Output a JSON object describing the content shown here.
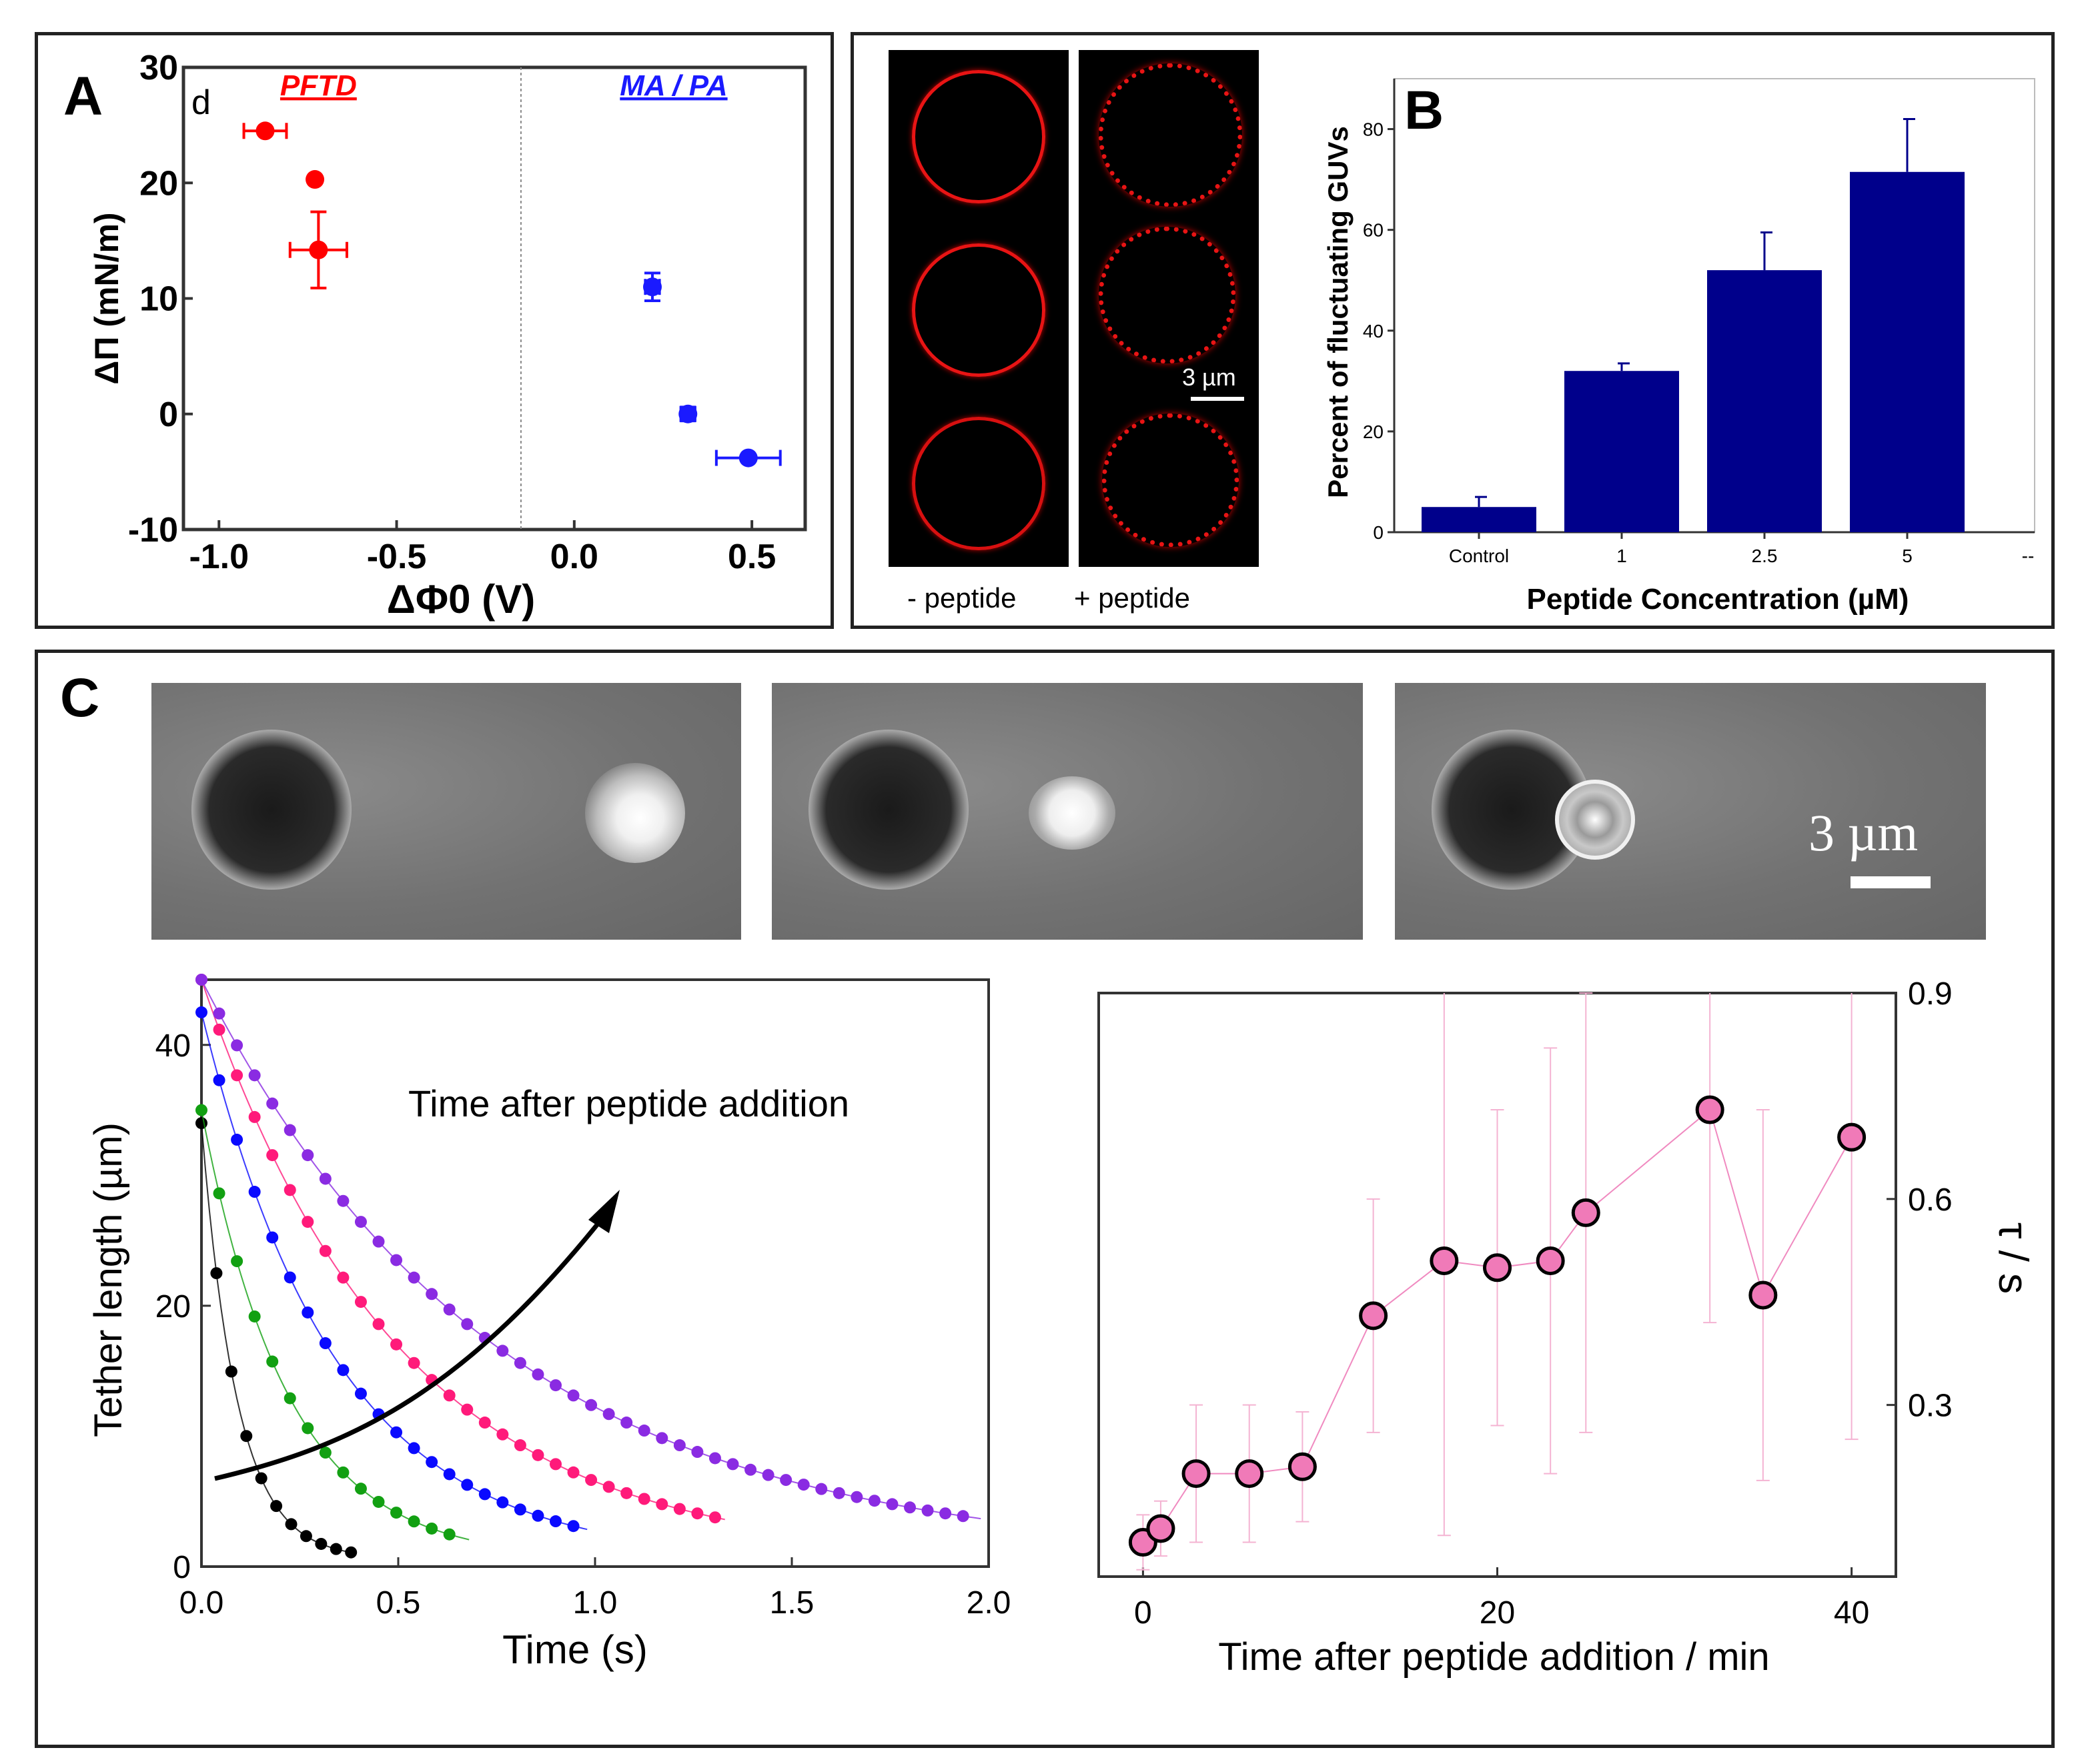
{
  "panels": {
    "A": {
      "label": "A"
    },
    "B": {
      "label": "B"
    },
    "C": {
      "label": "C"
    }
  },
  "micrographs": {
    "minus_label": "- peptide",
    "plus_label": "+ peptide",
    "scale_label": "3 µm",
    "phase_scale_label": "3 µm"
  },
  "chart_data": [
    {
      "id": "A",
      "type": "scatter",
      "xlabel": "ΔΦ0 (V)",
      "ylabel": "ΔΠ (mN/m)",
      "xlim": [
        -1.1,
        0.65
      ],
      "ylim": [
        -10,
        30
      ],
      "xticks": [
        -1.0,
        -0.5,
        0.0,
        0.5
      ],
      "xtick_labels": [
        "-1.0",
        "-0.5",
        "0.0",
        "0.5"
      ],
      "yticks": [
        -10,
        0,
        10,
        20,
        30
      ],
      "ytick_labels": [
        "-10",
        "0",
        "10",
        "20",
        "30"
      ],
      "divider_x": -0.15,
      "corner_label": "d",
      "series": [
        {
          "name": "PFTD",
          "color": "#ff0000",
          "points": [
            {
              "x": -0.87,
              "y": 24.5,
              "xerr": 0.06,
              "yerr": 0
            },
            {
              "x": -0.73,
              "y": 20.3,
              "xerr": 0,
              "yerr": 0
            },
            {
              "x": -0.72,
              "y": 14.2,
              "xerr": 0.08,
              "yerr": 3.3
            }
          ]
        },
        {
          "name": "MA / PA",
          "color": "#1a1aff",
          "points": [
            {
              "x": 0.22,
              "y": 11.0,
              "xerr": 0.02,
              "yerr": 1.2
            },
            {
              "x": 0.32,
              "y": 0.0,
              "xerr": 0.02,
              "yerr": 0.6
            },
            {
              "x": 0.49,
              "y": -3.8,
              "xerr": 0.09,
              "yerr": 0
            }
          ]
        }
      ]
    },
    {
      "id": "B",
      "type": "bar",
      "categories": [
        "Control",
        "1",
        "2.5",
        "5"
      ],
      "values": [
        5,
        32,
        52,
        71.5
      ],
      "errors": [
        2,
        1.5,
        7.5,
        10.5
      ],
      "xlabel": "Peptide Concentration (µM)",
      "ylabel": "Percent of fluctuating GUVs",
      "ylim": [
        0,
        90
      ],
      "yticks": [
        0,
        20,
        40,
        60,
        80
      ],
      "ytick_labels": [
        "0",
        "20",
        "40",
        "60",
        "80"
      ],
      "extra_tick_label": "--",
      "bar_color": "#00008b"
    },
    {
      "id": "C-left",
      "type": "line",
      "xlabel": "Time (s)",
      "ylabel": "Tether length (µm)",
      "xlim": [
        0,
        2.0
      ],
      "ylim": [
        0,
        45
      ],
      "xticks": [
        0,
        0.5,
        1.0,
        1.5,
        2.0
      ],
      "xtick_labels": [
        "0.0",
        "0.5",
        "1.0",
        "1.5",
        "2.0"
      ],
      "yticks": [
        0,
        20,
        40
      ],
      "ytick_labels": [
        "0",
        "20",
        "40"
      ],
      "annotation": "Time after peptide addition",
      "series": [
        {
          "color": "#000000",
          "y0": 34,
          "tend": 0.38,
          "dt": 0.038,
          "tau": 0.09,
          "c": 0.6
        },
        {
          "color": "#12a012",
          "y0": 35,
          "tend": 0.67,
          "dt": 0.045,
          "tau": 0.22,
          "c": 0.5
        },
        {
          "color": "#0a0aff",
          "y0": 42.5,
          "tend": 0.97,
          "dt": 0.045,
          "tau": 0.34,
          "c": 0.5
        },
        {
          "color": "#ff1a7a",
          "y0": 45,
          "tend": 1.31,
          "dt": 0.045,
          "tau": 0.5,
          "c": 0.5
        },
        {
          "color": "#8a2be2",
          "y0": 45,
          "tend": 1.95,
          "dt": 0.045,
          "tau": 0.75,
          "c": 0.5
        }
      ]
    },
    {
      "id": "C-right",
      "type": "scatter",
      "xlabel": "Time after peptide addition / min",
      "ylabel": "τ / s",
      "xlim": [
        -2.5,
        42.5
      ],
      "ylim": [
        0.05,
        0.9
      ],
      "xticks": [
        0,
        20,
        40
      ],
      "xtick_labels": [
        "0",
        "20",
        "40"
      ],
      "yticks": [
        0.3,
        0.6,
        0.9
      ],
      "ytick_labels": [
        "0.3",
        "0.6",
        "0.9"
      ],
      "marker_color": "#f07ab8",
      "points": [
        {
          "x": 0,
          "y": 0.1,
          "err": 0.04
        },
        {
          "x": 1,
          "y": 0.12,
          "err": 0.04
        },
        {
          "x": 3,
          "y": 0.2,
          "err": 0.1
        },
        {
          "x": 6,
          "y": 0.2,
          "err": 0.1
        },
        {
          "x": 9,
          "y": 0.21,
          "err": 0.08
        },
        {
          "x": 13,
          "y": 0.43,
          "err": 0.17
        },
        {
          "x": 17,
          "y": 0.51,
          "err": 0.4
        },
        {
          "x": 20,
          "y": 0.5,
          "err": 0.23
        },
        {
          "x": 23,
          "y": 0.51,
          "err": 0.31
        },
        {
          "x": 25,
          "y": 0.58,
          "err": 0.32
        },
        {
          "x": 32,
          "y": 0.73,
          "err": 0.31
        },
        {
          "x": 35,
          "y": 0.46,
          "err": 0.27
        },
        {
          "x": 40,
          "y": 0.69,
          "err": 0.44
        }
      ]
    }
  ]
}
